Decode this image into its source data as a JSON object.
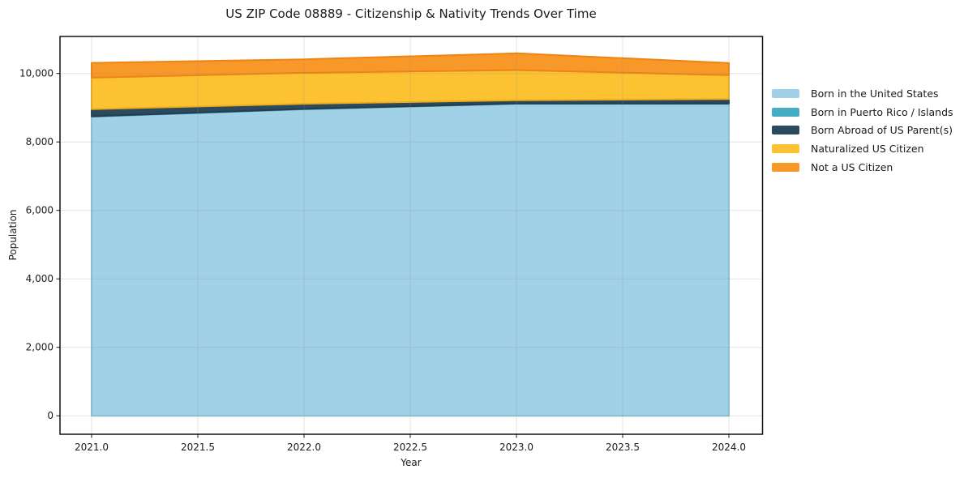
{
  "chart_data": {
    "type": "area",
    "stacked": true,
    "title": "US ZIP Code 08889 - Citizenship & Nativity Trends Over Time",
    "xlabel": "Year",
    "ylabel": "Population",
    "x": [
      2021,
      2022,
      2023,
      2024
    ],
    "series": [
      {
        "name": "Born in the United States",
        "values": [
          8740,
          8955,
          9115,
          9115
        ],
        "color": "#A1D1E7",
        "edge_color": "#8EC2DB"
      },
      {
        "name": "Born in Puerto Rico / Islands",
        "values": [
          10,
          10,
          10,
          10
        ],
        "color": "#45ADC4",
        "edge_color": "#3B99AE"
      },
      {
        "name": "Born Abroad of US Parent(s)",
        "values": [
          210,
          150,
          95,
          130
        ],
        "color": "#2B4A5E",
        "edge_color": "#233D4E"
      },
      {
        "name": "Naturalized US Citizen",
        "values": [
          920,
          905,
          880,
          695
        ],
        "color": "#FCC232",
        "edge_color": "#EFAD1C"
      },
      {
        "name": "Not a US Citizen",
        "values": [
          430,
          395,
          490,
          355
        ],
        "color": "#F89828",
        "edge_color": "#EE8414"
      }
    ],
    "stacked_totals": [
      10310,
      10415,
      10590,
      10295
    ],
    "x_ticks": {
      "values": [
        2021.0,
        2021.5,
        2022.0,
        2022.5,
        2023.0,
        2023.5,
        2024.0
      ],
      "labels": [
        "2021.0",
        "2021.5",
        "2022.0",
        "2022.5",
        "2023.0",
        "2023.5",
        "2024.0"
      ]
    },
    "y_ticks": {
      "values": [
        0,
        2000,
        4000,
        6000,
        8000,
        10000
      ],
      "labels": [
        "0",
        "2,000",
        "4,000",
        "6,000",
        "8,000",
        "10,000"
      ]
    },
    "xlim": [
      2020.85,
      2024.16
    ],
    "ylim": [
      0,
      11080
    ],
    "grid": true,
    "grid_over_areas": true,
    "legend_position": "right"
  },
  "colors": {
    "background": "#FFFFFF",
    "spine": "#111111",
    "text": "#1A1A1A",
    "grid": "#909090",
    "grid_opacity": 0.25
  }
}
